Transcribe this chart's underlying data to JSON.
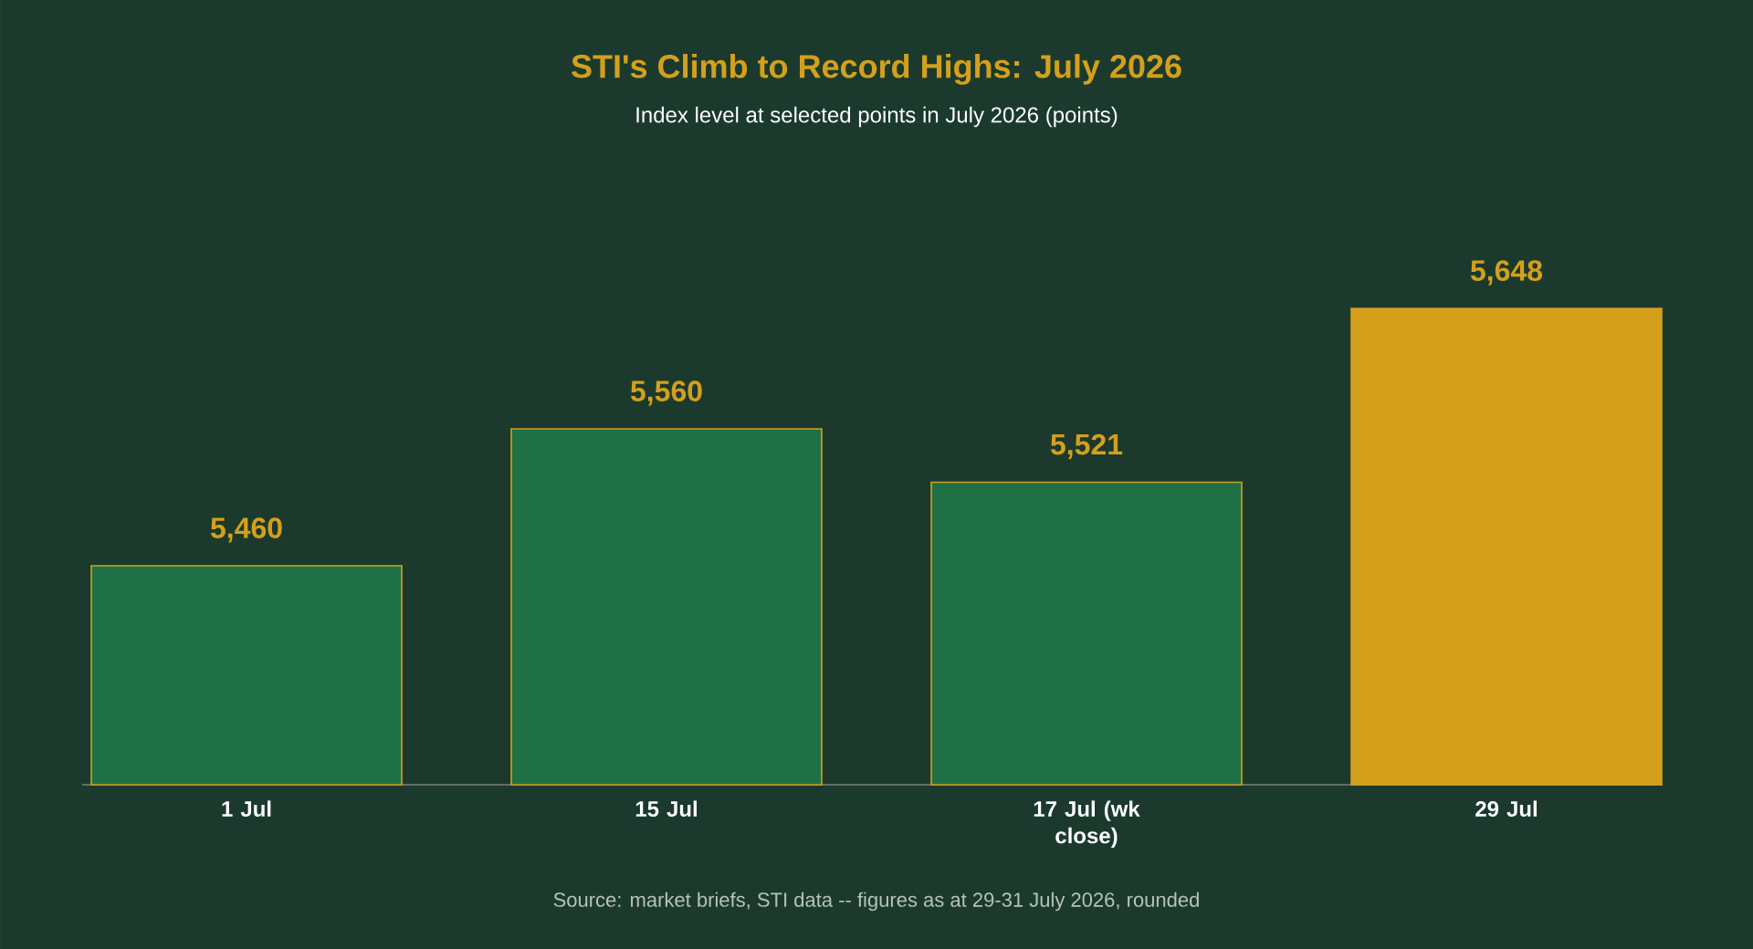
{
  "chart_data": {
    "type": "bar",
    "title": "STI's Climb to Record Highs: July 2026",
    "subtitle": "Index level at selected points in July 2026 (points)",
    "categories": [
      "1 Jul",
      "15 Jul",
      "17 Jul (wk close)",
      "29 Jul"
    ],
    "values": [
      5460,
      5560,
      5521,
      5648
    ],
    "colors": [
      "#1f7044",
      "#1f7044",
      "#1f7044",
      "#d4a01c"
    ],
    "value_labels": [
      "5,460",
      "5,560",
      "5,521",
      "5,648"
    ],
    "ylim": [
      5300,
      5648
    ],
    "tick_labels": "x",
    "annotations": [
      "Source: market briefs, STI data -- figures as at 29-31 July 2026, rounded"
    ]
  }
}
